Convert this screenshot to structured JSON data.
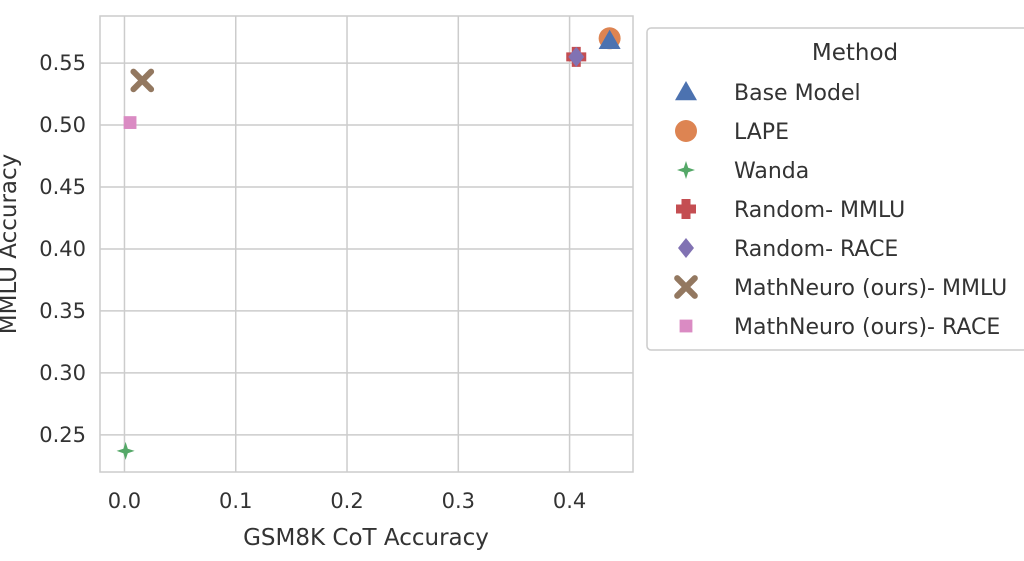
{
  "chart_data": {
    "type": "scatter",
    "xlabel": "GSM8K CoT Accuracy",
    "ylabel": "MMLU Accuracy",
    "xlim": [
      -0.022,
      0.457
    ],
    "ylim": [
      0.22,
      0.588
    ],
    "xticks": [
      "0.0",
      "0.1",
      "0.2",
      "0.3",
      "0.4"
    ],
    "yticks": [
      "0.25",
      "0.30",
      "0.35",
      "0.40",
      "0.45",
      "0.50",
      "0.55"
    ],
    "grid": true,
    "legend": {
      "title": "Method",
      "placement": "outside-right"
    },
    "series": [
      {
        "name": "Base Model",
        "marker": "triangle",
        "color": "#4C72B0",
        "x": 0.436,
        "y": 0.568
      },
      {
        "name": "LAPE",
        "marker": "circle",
        "color": "#DD8452",
        "x": 0.436,
        "y": 0.57
      },
      {
        "name": "Wanda",
        "marker": "star",
        "color": "#55A868",
        "x": 0.001,
        "y": 0.237
      },
      {
        "name": "Random- MMLU",
        "marker": "plus",
        "color": "#C44E52",
        "x": 0.406,
        "y": 0.555
      },
      {
        "name": "Random- RACE",
        "marker": "diamond",
        "color": "#8172B3",
        "x": 0.406,
        "y": 0.555
      },
      {
        "name": "MathNeuro (ours)- MMLU",
        "marker": "x",
        "color": "#937860",
        "x": 0.016,
        "y": 0.536
      },
      {
        "name": "MathNeuro (ours)- RACE",
        "marker": "square",
        "color": "#DA8BC3",
        "x": 0.005,
        "y": 0.502
      }
    ]
  }
}
